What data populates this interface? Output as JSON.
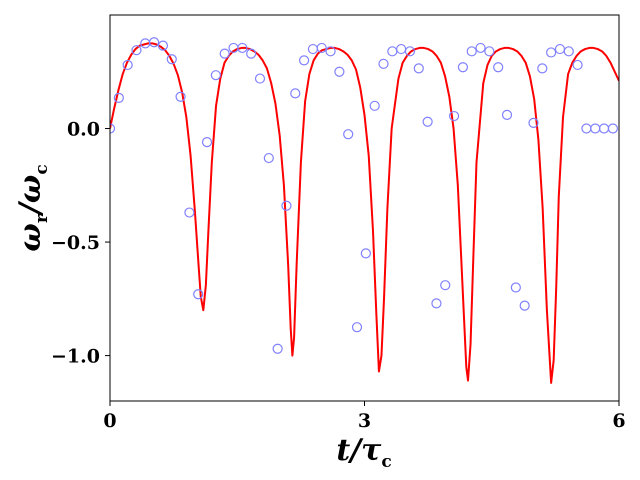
{
  "chart_data": {
    "type": "line",
    "xlabel": {
      "main": "t/τ",
      "sub": "c"
    },
    "ylabel": {
      "p1": "ω",
      "s1": "r",
      "p2": "/ω",
      "s2": "c"
    },
    "xlim": [
      0,
      6
    ],
    "ylim": [
      -1.2,
      0.5
    ],
    "xticks": [
      0,
      3,
      6
    ],
    "xtick_labels": [
      "0",
      "3",
      "6"
    ],
    "yticks": [
      0.0,
      -0.5,
      -1.0
    ],
    "ytick_labels": [
      "0.0",
      "−0.5",
      "−1.0"
    ],
    "grid": false,
    "legend": "none",
    "series": [
      {
        "kind": "line",
        "color": "#ff0000",
        "x": [
          0,
          0.05,
          0.1,
          0.15,
          0.2,
          0.25,
          0.3,
          0.35,
          0.4,
          0.45,
          0.5,
          0.55,
          0.6,
          0.65,
          0.7,
          0.75,
          0.8,
          0.85,
          0.9,
          0.95,
          1.0,
          1.04,
          1.07,
          1.1,
          1.13,
          1.16,
          1.2,
          1.25,
          1.3,
          1.35,
          1.4,
          1.45,
          1.5,
          1.55,
          1.6,
          1.65,
          1.7,
          1.75,
          1.8,
          1.85,
          1.9,
          1.95,
          2.0,
          2.05,
          2.1,
          2.13,
          2.15,
          2.17,
          2.2,
          2.25,
          2.3,
          2.35,
          2.4,
          2.45,
          2.5,
          2.55,
          2.6,
          2.65,
          2.7,
          2.75,
          2.8,
          2.85,
          2.9,
          2.95,
          3.0,
          3.05,
          3.1,
          3.14,
          3.17,
          3.2,
          3.23,
          3.27,
          3.32,
          3.4,
          3.45,
          3.5,
          3.55,
          3.6,
          3.65,
          3.7,
          3.75,
          3.8,
          3.85,
          3.9,
          3.95,
          4.0,
          4.05,
          4.1,
          4.15,
          4.2,
          4.22,
          4.25,
          4.28,
          4.32,
          4.4,
          4.45,
          4.5,
          4.55,
          4.6,
          4.65,
          4.7,
          4.75,
          4.8,
          4.85,
          4.9,
          4.95,
          5.0,
          5.05,
          5.1,
          5.15,
          5.2,
          5.23,
          5.26,
          5.29,
          5.34,
          5.4,
          5.45,
          5.5,
          5.55,
          5.6,
          5.65,
          5.7,
          5.75,
          5.8,
          5.85,
          5.9,
          5.95,
          6.0
        ],
        "y": [
          0.0,
          0.09,
          0.17,
          0.24,
          0.29,
          0.325,
          0.35,
          0.365,
          0.37,
          0.375,
          0.375,
          0.37,
          0.36,
          0.345,
          0.32,
          0.285,
          0.235,
          0.16,
          0.05,
          -0.12,
          -0.36,
          -0.58,
          -0.74,
          -0.8,
          -0.69,
          -0.45,
          -0.15,
          0.1,
          0.22,
          0.29,
          0.32,
          0.34,
          0.35,
          0.355,
          0.355,
          0.35,
          0.34,
          0.325,
          0.3,
          0.265,
          0.2,
          0.11,
          -0.03,
          -0.25,
          -0.6,
          -0.88,
          -1.0,
          -0.92,
          -0.6,
          -0.15,
          0.12,
          0.24,
          0.3,
          0.33,
          0.345,
          0.35,
          0.355,
          0.355,
          0.35,
          0.34,
          0.325,
          0.3,
          0.26,
          0.18,
          0.06,
          -0.12,
          -0.45,
          -0.82,
          -1.07,
          -1.0,
          -0.75,
          -0.35,
          0.0,
          0.22,
          0.29,
          0.32,
          0.34,
          0.35,
          0.355,
          0.355,
          0.35,
          0.34,
          0.32,
          0.29,
          0.23,
          0.14,
          0.0,
          -0.25,
          -0.65,
          -1.05,
          -1.11,
          -0.95,
          -0.6,
          -0.15,
          0.2,
          0.28,
          0.32,
          0.34,
          0.35,
          0.355,
          0.355,
          0.35,
          0.34,
          0.32,
          0.29,
          0.23,
          0.13,
          -0.05,
          -0.35,
          -0.8,
          -1.12,
          -1.02,
          -0.7,
          -0.3,
          0.05,
          0.24,
          0.29,
          0.32,
          0.34,
          0.35,
          0.355,
          0.355,
          0.35,
          0.34,
          0.32,
          0.29,
          0.25,
          0.21
        ]
      },
      {
        "kind": "scatter",
        "color": "#8080ff",
        "x": [
          0.0,
          0.104,
          0.208,
          0.312,
          0.416,
          0.52,
          0.624,
          0.728,
          0.832,
          0.936,
          1.04,
          1.144,
          1.248,
          1.352,
          1.456,
          1.56,
          1.664,
          1.768,
          1.872,
          1.976,
          2.08,
          2.184,
          2.288,
          2.392,
          2.496,
          2.6,
          2.704,
          2.808,
          2.912,
          3.016,
          3.12,
          3.224,
          3.328,
          3.432,
          3.536,
          3.64,
          3.744,
          3.848,
          3.952,
          4.056,
          4.16,
          4.264,
          4.368,
          4.472,
          4.576,
          4.68,
          4.784,
          4.888,
          4.992,
          5.096,
          5.2,
          5.304,
          5.408,
          5.512,
          5.616,
          5.72,
          5.824,
          5.928
        ],
        "y": [
          0.0,
          0.135,
          0.28,
          0.345,
          0.375,
          0.38,
          0.365,
          0.305,
          0.14,
          -0.37,
          -0.73,
          -0.06,
          0.235,
          0.33,
          0.355,
          0.355,
          0.33,
          0.22,
          -0.13,
          -0.97,
          -0.34,
          0.155,
          0.3,
          0.35,
          0.355,
          0.34,
          0.25,
          -0.025,
          -0.875,
          -0.55,
          0.1,
          0.285,
          0.34,
          0.35,
          0.34,
          0.265,
          0.03,
          -0.77,
          -0.69,
          0.055,
          0.27,
          0.34,
          0.355,
          0.34,
          0.27,
          0.06,
          -0.7,
          -0.78,
          0.025,
          0.265,
          0.335,
          0.35,
          0.34,
          0.28,
          0.0,
          0.0,
          0.0,
          0.0
        ]
      }
    ]
  }
}
